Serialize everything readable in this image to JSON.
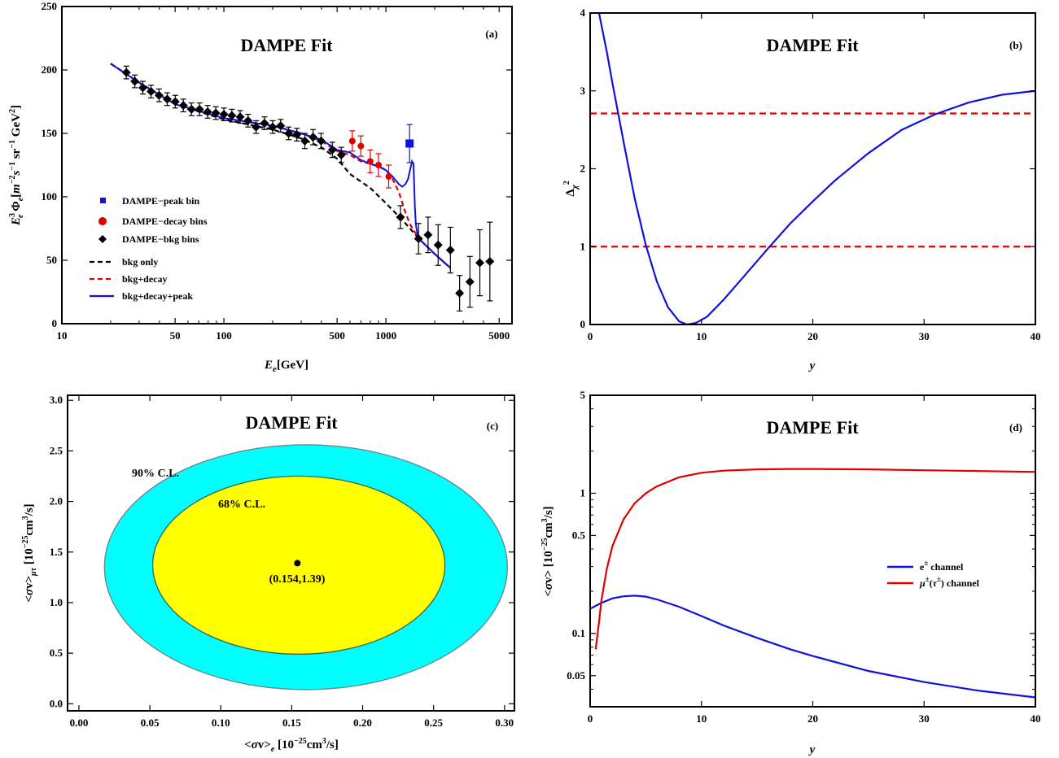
{
  "colors": {
    "blue": "#1010e0",
    "red": "#e00000",
    "black": "#000000",
    "cyan": "#00ffff",
    "yellow": "#ffff00",
    "dash_red": "#e00000"
  },
  "chart_data": [
    {
      "id": "a",
      "type": "scatter",
      "title": "DAMPE Fit",
      "panel_label": "(a)",
      "xlabel_main": "E",
      "xlabel_sub": "e",
      "xlabel_unit": "[GeV]",
      "ylabel": "E_e^3 Φ_e [m^-2 s^-1 sr^-1 GeV^2]",
      "x_scale": "log",
      "xlim": [
        10,
        6000
      ],
      "ylim": [
        0,
        250
      ],
      "x_ticks": [
        10,
        50,
        100,
        500,
        1000,
        5000
      ],
      "x_tick_labels": [
        "10",
        "50",
        "100",
        "500",
        "1000",
        "5000"
      ],
      "y_ticks": [
        0,
        50,
        100,
        150,
        200,
        250
      ],
      "y_tick_labels": [
        "0",
        "50",
        "100",
        "150",
        "200",
        "250"
      ],
      "legend": [
        "DAMPE−peak bin",
        "DAMPE−decay bins",
        "DAMPE−bkg bins",
        "bkg only",
        "bkg+decay",
        "bkg+decay+peak"
      ],
      "bkg_bins": [
        {
          "x": 25,
          "y": 198,
          "err": 5
        },
        {
          "x": 28.2,
          "y": 191,
          "err": 5
        },
        {
          "x": 31.6,
          "y": 186,
          "err": 5
        },
        {
          "x": 35.5,
          "y": 183,
          "err": 5
        },
        {
          "x": 39.8,
          "y": 180,
          "err": 5
        },
        {
          "x": 44.7,
          "y": 177,
          "err": 5
        },
        {
          "x": 50.1,
          "y": 175,
          "err": 5
        },
        {
          "x": 56.2,
          "y": 172,
          "err": 5
        },
        {
          "x": 63.1,
          "y": 169,
          "err": 5
        },
        {
          "x": 70.8,
          "y": 169,
          "err": 5
        },
        {
          "x": 79.4,
          "y": 167,
          "err": 5
        },
        {
          "x": 89.1,
          "y": 166,
          "err": 5
        },
        {
          "x": 100,
          "y": 165,
          "err": 5
        },
        {
          "x": 112,
          "y": 164,
          "err": 5
        },
        {
          "x": 126,
          "y": 163,
          "err": 5
        },
        {
          "x": 141,
          "y": 160,
          "err": 5
        },
        {
          "x": 158,
          "y": 155,
          "err": 5
        },
        {
          "x": 178,
          "y": 158,
          "err": 5
        },
        {
          "x": 200,
          "y": 155,
          "err": 5
        },
        {
          "x": 224,
          "y": 156,
          "err": 5
        },
        {
          "x": 251,
          "y": 150,
          "err": 5
        },
        {
          "x": 282,
          "y": 149,
          "err": 5
        },
        {
          "x": 316,
          "y": 144,
          "err": 6
        },
        {
          "x": 355,
          "y": 147,
          "err": 6
        },
        {
          "x": 398,
          "y": 144,
          "err": 6
        },
        {
          "x": 467,
          "y": 137,
          "err": 6
        },
        {
          "x": 530,
          "y": 133,
          "err": 6
        },
        {
          "x": 1230,
          "y": 84,
          "err": 9
        },
        {
          "x": 1590,
          "y": 67,
          "err": 12
        },
        {
          "x": 1820,
          "y": 70,
          "err": 14
        },
        {
          "x": 2100,
          "y": 62,
          "err": 16
        },
        {
          "x": 2500,
          "y": 58,
          "err": 18
        },
        {
          "x": 2850,
          "y": 24,
          "err": 14
        },
        {
          "x": 3300,
          "y": 33,
          "err": 20
        },
        {
          "x": 3800,
          "y": 48,
          "err": 26
        },
        {
          "x": 4380,
          "y": 49,
          "err": 31
        }
      ],
      "decay_bins": [
        {
          "x": 620,
          "y": 144,
          "err": 8
        },
        {
          "x": 700,
          "y": 140,
          "err": 8
        },
        {
          "x": 800,
          "y": 128,
          "err": 9
        },
        {
          "x": 900,
          "y": 125,
          "err": 9
        },
        {
          "x": 1040,
          "y": 116,
          "err": 9
        }
      ],
      "peak_bin": {
        "x": 1400,
        "y": 142,
        "err": 15
      },
      "bkg_only": {
        "x": [
          20,
          30,
          50,
          100,
          200,
          300,
          400,
          500,
          600,
          800,
          1000,
          1300,
          1600,
          2000,
          2500
        ],
        "y": [
          205,
          190,
          173,
          161,
          153,
          146,
          139,
          130,
          118,
          107,
          95,
          80,
          67,
          55,
          44
        ]
      },
      "bkg_decay": {
        "x": [
          20,
          30,
          50,
          100,
          200,
          300,
          400,
          500,
          600,
          700,
          800,
          900,
          1000,
          1100,
          1200,
          1300,
          1400,
          1600,
          2000,
          2500
        ],
        "y": [
          205,
          190,
          173,
          162,
          156,
          150,
          144,
          136,
          133,
          128,
          126,
          124,
          121,
          114,
          104,
          90,
          79,
          67,
          55,
          44
        ]
      },
      "bkg_decay_peak": {
        "x": [
          20,
          30,
          50,
          100,
          200,
          300,
          400,
          500,
          600,
          700,
          800,
          900,
          1000,
          1100,
          1200,
          1260,
          1320,
          1370,
          1420,
          1450,
          1480,
          1510,
          1530,
          1560,
          1600,
          2000,
          2500
        ],
        "y": [
          205,
          190,
          173,
          162,
          156,
          150,
          145,
          137,
          135,
          129,
          126,
          124,
          121,
          116,
          110,
          108,
          110,
          114,
          123,
          128,
          126,
          92,
          78,
          72,
          67,
          55,
          44
        ]
      }
    },
    {
      "id": "b",
      "type": "line",
      "title": "DAMPE Fit",
      "panel_label": "(b)",
      "xlabel": "y",
      "ylabel_main": "Δ",
      "ylabel_sub": "χ",
      "ylabel_sup": "2",
      "xlim": [
        0,
        40
      ],
      "ylim": [
        0,
        4
      ],
      "x_ticks": [
        0,
        10,
        20,
        30,
        40
      ],
      "y_ticks": [
        0,
        1,
        2,
        3,
        4
      ],
      "x_tick_labels": [
        "0",
        "10",
        "20",
        "30",
        "40"
      ],
      "y_tick_labels": [
        "0",
        "1",
        "2",
        "3",
        "4"
      ],
      "hlines": [
        1,
        2.71
      ],
      "curve": {
        "x": [
          0.8,
          1.5,
          2,
          3,
          4,
          5,
          6,
          7,
          8,
          8.7,
          9.5,
          10.5,
          12,
          14,
          16,
          18,
          20,
          22,
          25,
          28,
          31,
          34,
          37,
          40
        ],
        "y": [
          4.0,
          3.5,
          3.1,
          2.35,
          1.62,
          1.02,
          0.55,
          0.22,
          0.04,
          0.0,
          0.02,
          0.1,
          0.32,
          0.65,
          0.98,
          1.3,
          1.58,
          1.85,
          2.2,
          2.5,
          2.7,
          2.85,
          2.95,
          3.0
        ]
      }
    },
    {
      "id": "c",
      "type": "scatter",
      "title": "DAMPE Fit",
      "panel_label": "(c)",
      "xlabel": "<σv>_e [10^-25 cm^3/s]",
      "ylabel": "<σv>_μτ [10^-25 cm^3/s]",
      "xlim": [
        -0.008,
        0.307
      ],
      "ylim": [
        -0.07,
        3.05
      ],
      "x_ticks": [
        0,
        0.05,
        0.1,
        0.15,
        0.2,
        0.25,
        0.3
      ],
      "x_tick_labels": [
        "0.00",
        "0.05",
        "0.10",
        "0.15",
        "0.20",
        "0.25",
        "0.30"
      ],
      "y_ticks": [
        0,
        0.5,
        1.0,
        1.5,
        2.0,
        2.5,
        3.0
      ],
      "y_tick_labels": [
        "0.0",
        "0.5",
        "1.0",
        "1.5",
        "2.0",
        "2.5",
        "3.0"
      ],
      "best_fit": {
        "x": 0.154,
        "y": 1.39
      },
      "best_fit_label": "(0.154,1.39)",
      "contours": [
        {
          "name": "90% C.L.",
          "cx": 0.16,
          "cy": 1.35,
          "rx": 0.142,
          "ry": 1.21,
          "color": "#00ffff"
        },
        {
          "name": "68% C.L.",
          "cx": 0.155,
          "cy": 1.37,
          "rx": 0.103,
          "ry": 0.88,
          "color": "#ffff00"
        }
      ]
    },
    {
      "id": "d",
      "type": "line",
      "title": "DAMPE Fit",
      "panel_label": "(d)",
      "xlabel": "y",
      "ylabel": "<σv> [10^-25 cm^3/s]",
      "y_scale": "log",
      "xlim": [
        0,
        40
      ],
      "ylim": [
        0.03,
        5
      ],
      "x_ticks": [
        0,
        10,
        20,
        30,
        40
      ],
      "x_tick_labels": [
        "0",
        "10",
        "20",
        "30",
        "40"
      ],
      "y_ticks": [
        0.05,
        0.1,
        0.5,
        1,
        5
      ],
      "y_tick_labels": [
        "0.05",
        "0.1",
        "0.5",
        "1",
        "5"
      ],
      "series": [
        {
          "name": "e± channel",
          "color": "#1010e0",
          "x": [
            0,
            1,
            2,
            3,
            4,
            5,
            6,
            8,
            10,
            12,
            15,
            18,
            20,
            25,
            30,
            35,
            40
          ],
          "y": [
            0.15,
            0.165,
            0.178,
            0.184,
            0.186,
            0.183,
            0.175,
            0.155,
            0.133,
            0.114,
            0.093,
            0.077,
            0.069,
            0.054,
            0.045,
            0.039,
            0.035
          ]
        },
        {
          "name": "μ±(τ±) channel",
          "color": "#e00000",
          "x": [
            0.5,
            0.8,
            1,
            1.5,
            2,
            3,
            4,
            5,
            6,
            8,
            10,
            12,
            15,
            18,
            20,
            25,
            30,
            35,
            40
          ],
          "y": [
            0.077,
            0.12,
            0.17,
            0.29,
            0.42,
            0.65,
            0.85,
            1.0,
            1.12,
            1.3,
            1.4,
            1.45,
            1.48,
            1.49,
            1.49,
            1.48,
            1.46,
            1.44,
            1.42
          ]
        }
      ]
    }
  ]
}
